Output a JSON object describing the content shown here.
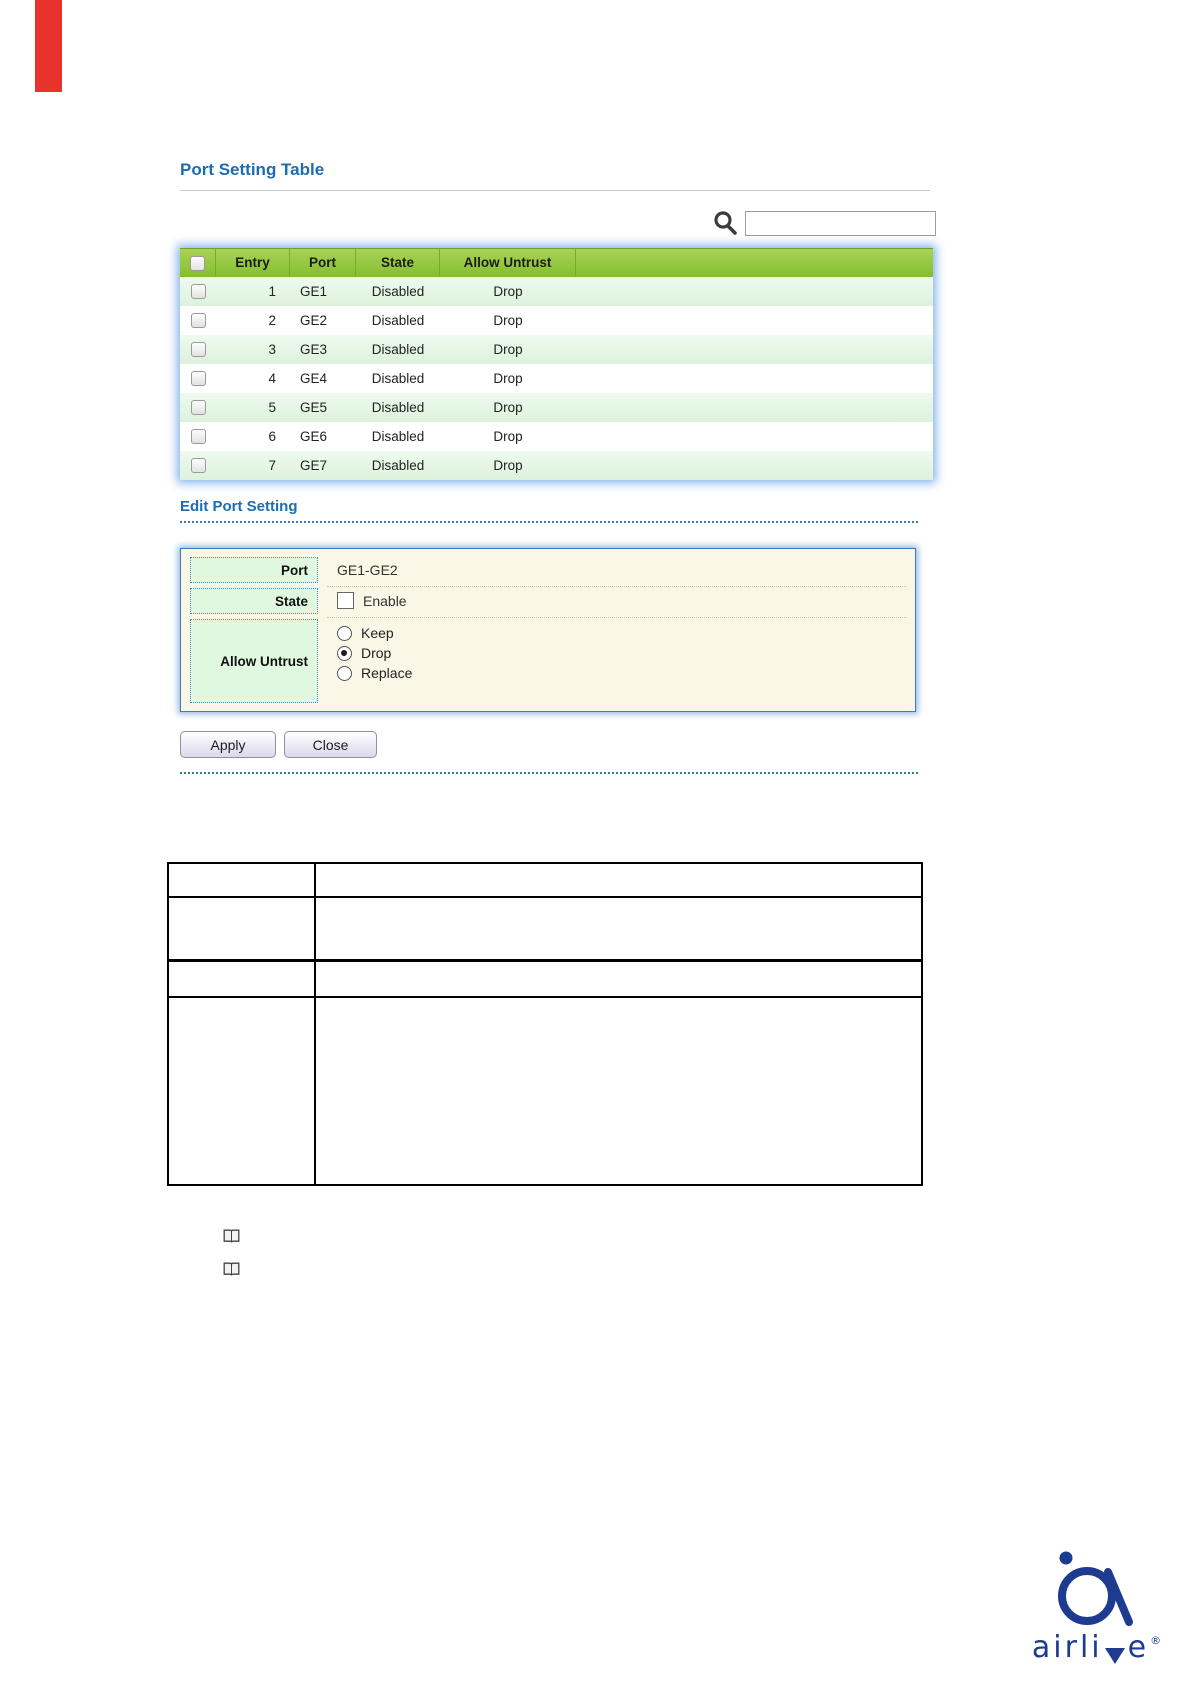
{
  "page": {
    "red_marker_color": "#e7332b",
    "background": "#ffffff"
  },
  "port_setting_table": {
    "title": "Port Setting Table",
    "search": {
      "icon": "magnifier-icon",
      "value": "",
      "placeholder": ""
    },
    "header_checkbox_checked": false,
    "columns": [
      "Entry",
      "Port",
      "State",
      "Allow Untrust"
    ],
    "rows": [
      {
        "entry": "1",
        "port": "GE1",
        "state": "Disabled",
        "allow_untrust": "Drop",
        "checked": false
      },
      {
        "entry": "2",
        "port": "GE2",
        "state": "Disabled",
        "allow_untrust": "Drop",
        "checked": false
      },
      {
        "entry": "3",
        "port": "GE3",
        "state": "Disabled",
        "allow_untrust": "Drop",
        "checked": false
      },
      {
        "entry": "4",
        "port": "GE4",
        "state": "Disabled",
        "allow_untrust": "Drop",
        "checked": false
      },
      {
        "entry": "5",
        "port": "GE5",
        "state": "Disabled",
        "allow_untrust": "Drop",
        "checked": false
      },
      {
        "entry": "6",
        "port": "GE6",
        "state": "Disabled",
        "allow_untrust": "Drop",
        "checked": false
      },
      {
        "entry": "7",
        "port": "GE7",
        "state": "Disabled",
        "allow_untrust": "Drop",
        "checked": false
      }
    ],
    "colors": {
      "header_bg": "#8dc63f",
      "row_alt_bg": "#e3f6e3",
      "glow": "#7fb0e2"
    }
  },
  "edit_port_setting": {
    "title": "Edit Port Setting",
    "fields": {
      "port": {
        "label": "Port",
        "value": "GE1-GE2"
      },
      "state": {
        "label": "State",
        "option": "Enable",
        "checked": false
      },
      "allow_untrust": {
        "label": "Allow Untrust",
        "options": [
          "Keep",
          "Drop",
          "Replace"
        ],
        "selected": "Drop"
      }
    },
    "buttons": {
      "apply": "Apply",
      "close": "Close"
    },
    "colors": {
      "form_bg": "#faf7e6",
      "label_bg": "#e0f8e0",
      "border": "#3e78b8"
    }
  },
  "reference_table": {
    "rows": [
      [
        "",
        ""
      ],
      [
        "",
        ""
      ],
      [
        "",
        ""
      ],
      [
        "",
        ""
      ]
    ]
  },
  "note_icons": [
    {
      "name": "open-book-icon"
    },
    {
      "name": "open-book-icon"
    }
  ],
  "logo": {
    "brand": "airlive",
    "brand_prefix": "airli",
    "brand_suffix": "e",
    "registered": "®",
    "color": "#1d3c90"
  }
}
